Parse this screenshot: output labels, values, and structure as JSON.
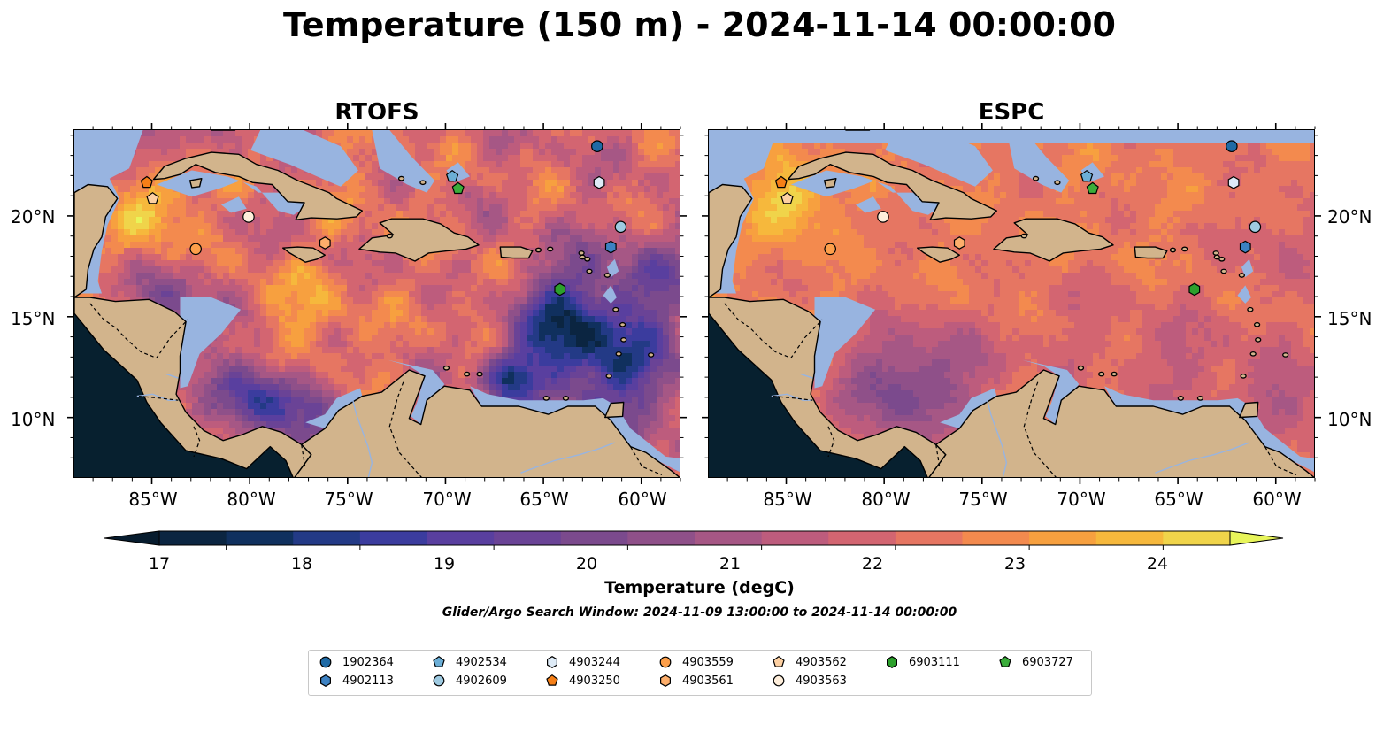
{
  "title": "Temperature (150 m) - 2024-11-14 00:00:00",
  "panels": [
    {
      "title": "RTOFS",
      "model": "rtofs"
    },
    {
      "title": "ESPC",
      "model": "espc"
    }
  ],
  "lat_ticks": [
    {
      "value": 20,
      "label": "20°N"
    },
    {
      "value": 15,
      "label": "15°N"
    },
    {
      "value": 10,
      "label": "10°N"
    }
  ],
  "lon_ticks": [
    {
      "value": -85,
      "label": "85°W"
    },
    {
      "value": -80,
      "label": "80°W"
    },
    {
      "value": -75,
      "label": "75°W"
    },
    {
      "value": -70,
      "label": "70°W"
    },
    {
      "value": -65,
      "label": "65°W"
    },
    {
      "value": -60,
      "label": "60°W"
    }
  ],
  "map_extent": {
    "lon_min": -89.0,
    "lon_max": -58.0,
    "lat_min": 7.0,
    "lat_max": 24.3
  },
  "colorbar": {
    "label": "Temperature (degC)",
    "ticks": [
      "17",
      "18",
      "19",
      "20",
      "21",
      "22",
      "23",
      "24"
    ],
    "min": 16.5,
    "max": 24.5,
    "colors": [
      "#0b2541",
      "#10305e",
      "#233a86",
      "#3b3c9e",
      "#593f9f",
      "#6a4396",
      "#7b4a8d",
      "#8f5089",
      "#a65785",
      "#bd5c7d",
      "#d36571",
      "#e67662",
      "#f38a4e",
      "#f7a03f",
      "#f6b83c",
      "#f0d44a"
    ],
    "extend_low": "#071c2e",
    "extend_high": "#e8f55a"
  },
  "search_window": "Glider/Argo Search Window: 2024-11-09 13:00:00 to 2024-11-14 00:00:00",
  "floats": [
    {
      "id": "1902364",
      "marker": "circle",
      "color": "#1f6aa5",
      "lon": -62.3,
      "lat": 23.5
    },
    {
      "id": "4902113",
      "marker": "hexagon",
      "color": "#3d82c3",
      "lon": -61.6,
      "lat": 18.5
    },
    {
      "id": "4902534",
      "marker": "pentagon",
      "color": "#6baed6",
      "lon": -69.7,
      "lat": 22.0
    },
    {
      "id": "4902609",
      "marker": "circle",
      "color": "#9ecae1",
      "lon": -61.1,
      "lat": 19.5
    },
    {
      "id": "4903244",
      "marker": "hexagon",
      "color": "#deebf7",
      "lon": -62.2,
      "lat": 21.7
    },
    {
      "id": "4903250",
      "marker": "pentagon",
      "color": "#f57f17",
      "lon": -85.3,
      "lat": 21.7
    },
    {
      "id": "4903559",
      "marker": "circle",
      "color": "#fd9f4a",
      "lon": -82.8,
      "lat": 18.4
    },
    {
      "id": "4903561",
      "marker": "hexagon",
      "color": "#fdae6b",
      "lon": -76.2,
      "lat": 18.7
    },
    {
      "id": "4903562",
      "marker": "pentagon",
      "color": "#fdd0a2",
      "lon": -85.0,
      "lat": 20.9
    },
    {
      "id": "4903563",
      "marker": "circle",
      "color": "#feeedb",
      "lon": -80.1,
      "lat": 20.0
    },
    {
      "id": "6903111",
      "marker": "hexagon",
      "color": "#2ca02c",
      "lon": -64.2,
      "lat": 16.4
    },
    {
      "id": "6903727",
      "marker": "pentagon",
      "color": "#3aad3a",
      "lon": -69.4,
      "lat": 21.4
    }
  ],
  "colors": {
    "land": "#d2b48c",
    "shelf": "#98b4e0",
    "pacific": "#07202f"
  }
}
